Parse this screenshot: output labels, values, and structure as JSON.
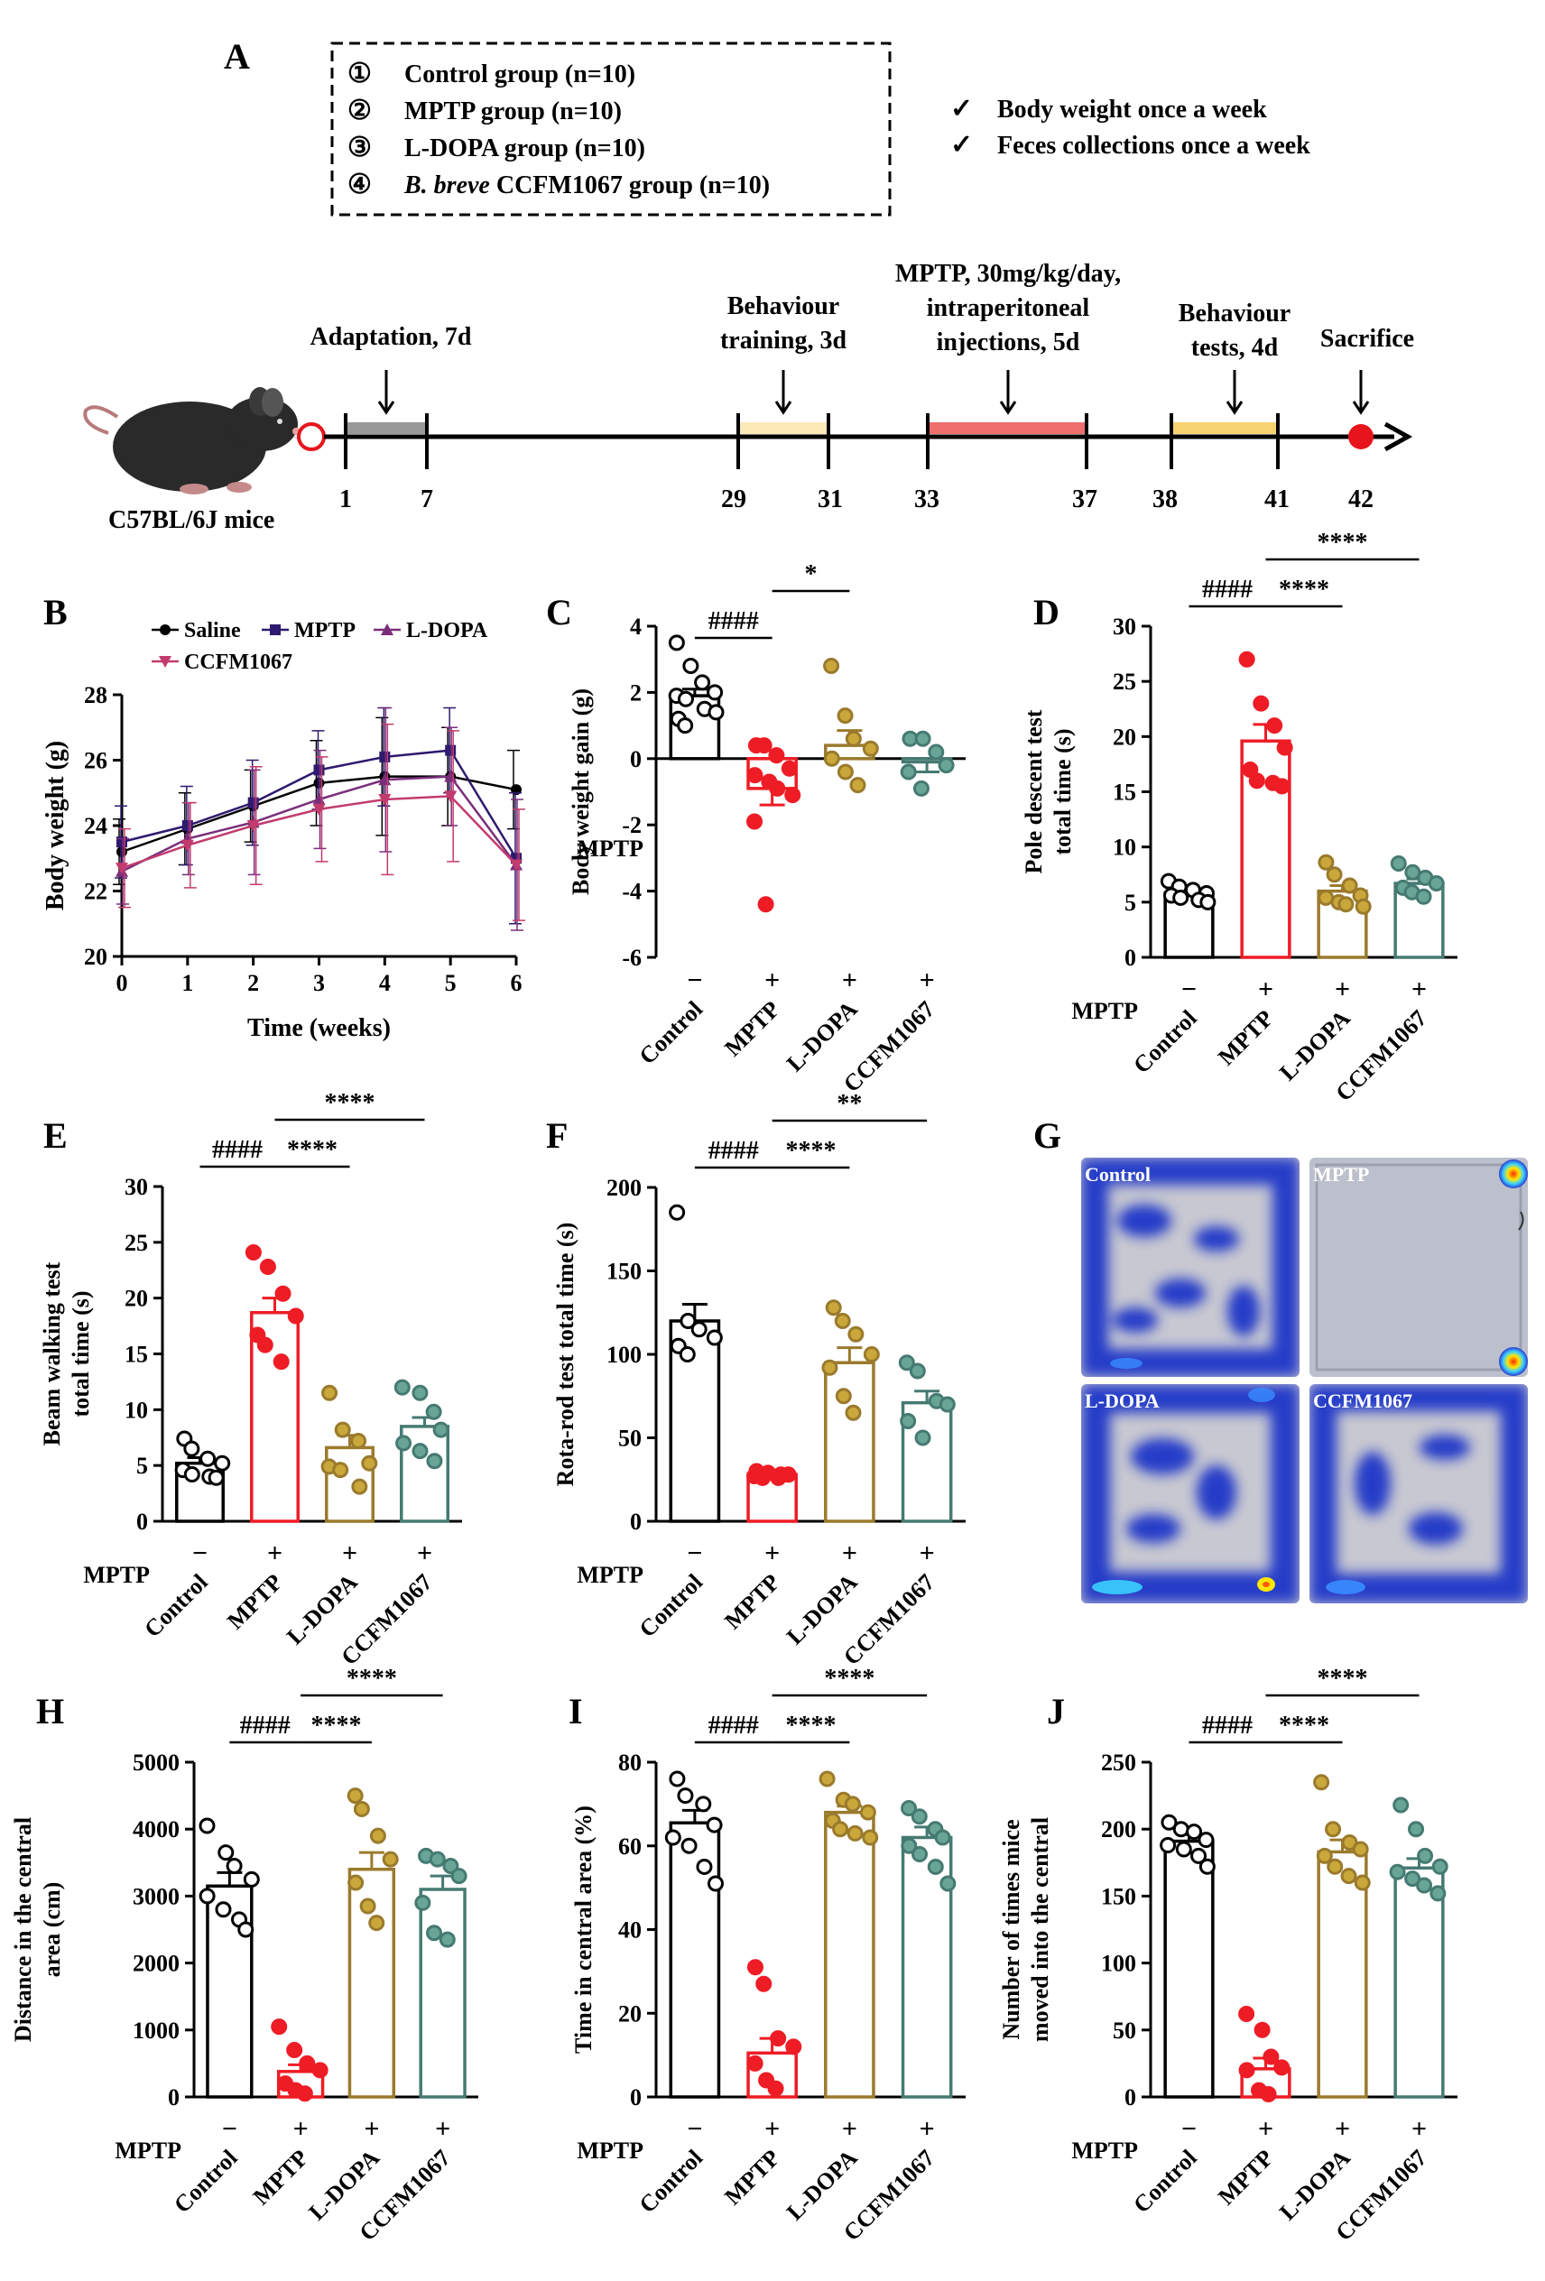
{
  "panel_labels": {
    "A": "A",
    "B": "B",
    "C": "C",
    "D": "D",
    "E": "E",
    "F": "F",
    "G": "G",
    "H": "H",
    "I": "I",
    "J": "J"
  },
  "groups_box": [
    {
      "num": "①",
      "text": "Control group (n=10)"
    },
    {
      "num": "②",
      "text": "MPTP group (n=10)"
    },
    {
      "num": "③",
      "text": "L-DOPA group (n=10)"
    },
    {
      "num": "④",
      "italic": "B. breve",
      "text": " CCFM1067 group (n=10)"
    }
  ],
  "checks": [
    "Body weight once a week",
    "Feces collections once a week"
  ],
  "check_mark": "✓",
  "timeline": {
    "mouse_label": "C57BL/6J mice",
    "phases": [
      "Adaptation, 7d",
      "Behaviour training, 3d",
      "MPTP, 30mg/kg/day, intraperitoneal injections, 5d",
      "Behaviour tests, 4d",
      "Sacrifice"
    ],
    "phase_lines": [
      [
        "Adaptation, 7d"
      ],
      [
        "Behaviour",
        "training, 3d"
      ],
      [
        "MPTP, 30mg/kg/day,",
        "intraperitoneal",
        "injections, 5d"
      ],
      [
        "Behaviour",
        "tests, 4d"
      ],
      [
        "Sacrifice"
      ]
    ],
    "days": [
      "1",
      "7",
      "29",
      "31",
      "33",
      "37",
      "38",
      "41",
      "42"
    ],
    "colors": {
      "adaptation": "#999999",
      "training": "#fbe9b7",
      "mptp": "#ef6f6f",
      "tests": "#f7d271",
      "sacrifice": "#e8141b",
      "start_circle": "#e8141b"
    }
  },
  "heatmaps": {
    "labels": [
      "Control",
      "MPTP",
      "L-DOPA",
      "CCFM1067"
    ]
  },
  "colors": {
    "Control": "#000000",
    "MPTP": "#ee1c25",
    "L-DOPA": "#9a7a2c",
    "CCFM1067": "#457a72",
    "Control_dot": "#ffffff",
    "MPTP_dot": "#ee1c25",
    "L-DOPA_dot": "#c9a73a",
    "CCFM1067_dot": "#69a596"
  },
  "chart_data": [
    {
      "panel": "B",
      "type": "line",
      "xlabel": "Time (weeks)",
      "ylabel": "Body weight (g)",
      "x": [
        0,
        1,
        2,
        3,
        4,
        5,
        6
      ],
      "xticks": [
        "0",
        "1",
        "2",
        "3",
        "4",
        "5",
        "6"
      ],
      "ylim": [
        20,
        28
      ],
      "yticks": [
        "20",
        "22",
        "24",
        "26",
        "28"
      ],
      "legend_placement": "top",
      "series": [
        {
          "name": "Saline",
          "marker": "circle",
          "color": "#000000",
          "values": [
            23.2,
            23.9,
            24.6,
            25.3,
            25.5,
            25.5,
            25.1
          ],
          "err": [
            1.0,
            1.1,
            1.1,
            1.3,
            1.8,
            1.5,
            1.2
          ]
        },
        {
          "name": "MPTP",
          "marker": "square",
          "color": "#2e1a6e",
          "values": [
            23.5,
            24.0,
            24.7,
            25.7,
            26.1,
            26.3,
            23.0
          ],
          "err": [
            1.1,
            1.2,
            1.3,
            1.2,
            1.5,
            1.3,
            2.0
          ]
        },
        {
          "name": "L-DOPA",
          "marker": "triangle-up",
          "color": "#7a2e7a",
          "values": [
            22.6,
            23.6,
            24.1,
            24.8,
            25.4,
            25.5,
            22.8
          ],
          "err": [
            1.0,
            1.1,
            1.6,
            1.5,
            2.2,
            1.5,
            2.0
          ]
        },
        {
          "name": "CCFM1067",
          "marker": "triangle-down",
          "color": "#c23b6e",
          "values": [
            22.7,
            23.4,
            24.0,
            24.5,
            24.8,
            24.9,
            22.8
          ],
          "err": [
            1.2,
            1.3,
            1.8,
            1.6,
            2.3,
            2.0,
            1.7
          ]
        }
      ]
    },
    {
      "panel": "C",
      "type": "bar",
      "ylabel": "Body weight gain (g)",
      "ylim": [
        -6,
        4
      ],
      "yticks": [
        "-6",
        "-4",
        "-2",
        "0",
        "2",
        "4"
      ],
      "categories": [
        "Control",
        "MPTP",
        "L-DOPA",
        "CCFM1067"
      ],
      "mptp_row": [
        "−",
        "+",
        "+",
        "+"
      ],
      "mptp_label": "MPTP",
      "values": [
        1.9,
        -0.9,
        0.4,
        -0.1
      ],
      "err": [
        0.2,
        0.5,
        0.45,
        0.3
      ],
      "points": [
        [
          3.5,
          2.8,
          2.3,
          2.0,
          1.9,
          1.8,
          1.5,
          1.4,
          1.2,
          1.0
        ],
        [
          0.4,
          0.4,
          0.1,
          -0.3,
          -0.5,
          -0.7,
          -0.9,
          -1.1,
          -1.9,
          -4.4
        ],
        [
          2.8,
          1.3,
          0.6,
          0.3,
          0.0,
          -0.4,
          -0.8
        ],
        [
          0.6,
          0.6,
          0.2,
          -0.2,
          -0.4,
          -0.9
        ]
      ],
      "sig": [
        {
          "from": 0,
          "to": 1,
          "label": "####",
          "level": 0
        },
        {
          "from": 1,
          "to": 2,
          "label": "*",
          "level": 1
        }
      ]
    },
    {
      "panel": "D",
      "type": "bar",
      "ylabel": "Pole descent test total time (s)",
      "ylabel_lines": [
        "Pole descent test",
        "total time (s)"
      ],
      "ylim": [
        0,
        30
      ],
      "yticks": [
        "0",
        "5",
        "10",
        "15",
        "20",
        "25",
        "30"
      ],
      "categories": [
        "Control",
        "MPTP",
        "L-DOPA",
        "CCFM1067"
      ],
      "mptp_row": [
        "−",
        "+",
        "+",
        "+"
      ],
      "mptp_label": "MPTP",
      "values": [
        5.8,
        19.6,
        6.0,
        6.7
      ],
      "err": [
        0.3,
        1.5,
        0.5,
        0.4
      ],
      "points": [
        [
          6.9,
          6.4,
          6.1,
          5.8,
          5.6,
          5.4,
          5.2,
          5.0
        ],
        [
          27.0,
          23.0,
          21.0,
          19.0,
          17.0,
          16.0,
          15.8,
          15.5
        ],
        [
          8.6,
          7.5,
          6.5,
          5.6,
          5.4,
          5.0,
          4.8,
          4.6
        ],
        [
          8.5,
          7.7,
          7.2,
          6.7,
          6.3,
          5.9,
          5.5
        ]
      ],
      "sig": [
        {
          "from": 0,
          "to": 1,
          "label": "####",
          "level": 0
        },
        {
          "from": 1,
          "to": 2,
          "label": "****",
          "level": 0
        },
        {
          "from": 1,
          "to": 3,
          "label": "****",
          "level": 1
        }
      ]
    },
    {
      "panel": "E",
      "type": "bar",
      "ylabel": "Beam walking test total time (s)",
      "ylabel_lines": [
        "Beam walking test",
        "total time (s)"
      ],
      "ylim": [
        0,
        30
      ],
      "yticks": [
        "0",
        "5",
        "10",
        "15",
        "20",
        "25",
        "30"
      ],
      "categories": [
        "Control",
        "MPTP",
        "L-DOPA",
        "CCFM1067"
      ],
      "mptp_row": [
        "−",
        "+",
        "+",
        "+"
      ],
      "mptp_label": "MPTP",
      "values": [
        5.2,
        18.7,
        6.6,
        8.5
      ],
      "err": [
        0.5,
        1.3,
        1.1,
        0.8
      ],
      "points": [
        [
          7.4,
          6.5,
          5.6,
          5.2,
          4.6,
          4.2,
          4.0,
          3.9
        ],
        [
          24.1,
          22.8,
          20.4,
          18.4,
          16.7,
          15.8,
          14.3
        ],
        [
          11.5,
          8.2,
          7.2,
          5.2,
          4.9,
          4.6,
          3.1
        ],
        [
          12.0,
          11.5,
          9.8,
          8.2,
          7.0,
          6.3,
          5.4
        ]
      ],
      "sig": [
        {
          "from": 1,
          "to": 0,
          "label": "####",
          "level": 0
        },
        {
          "from": 1,
          "to": 2,
          "label": "****",
          "level": 0
        },
        {
          "from": 1,
          "to": 3,
          "label": "****",
          "level": 1
        }
      ]
    },
    {
      "panel": "F",
      "type": "bar",
      "ylabel": "Rota-rod test total time (s)",
      "ylim": [
        0,
        200
      ],
      "yticks": [
        "0",
        "50",
        "100",
        "150",
        "200"
      ],
      "categories": [
        "Control",
        "MPTP",
        "L-DOPA",
        "CCFM1067"
      ],
      "mptp_row": [
        "−",
        "+",
        "+",
        "+"
      ],
      "mptp_label": "MPTP",
      "values": [
        120,
        28,
        95,
        71
      ],
      "err": [
        10,
        1.5,
        9,
        7
      ],
      "points": [
        [
          185,
          120,
          115,
          110,
          105,
          100
        ],
        [
          30,
          29,
          28,
          28,
          27,
          26,
          26
        ],
        [
          128,
          120,
          112,
          100,
          92,
          75,
          65
        ],
        [
          95,
          90,
          72,
          70,
          60,
          50
        ]
      ],
      "sig": [
        {
          "from": 0,
          "to": 1,
          "label": "####",
          "level": 0
        },
        {
          "from": 1,
          "to": 2,
          "label": "****",
          "level": 0
        },
        {
          "from": 1,
          "to": 3,
          "label": "**",
          "level": 1
        }
      ]
    },
    {
      "panel": "H",
      "type": "bar",
      "ylabel": "Distance in the central area (cm)",
      "ylabel_lines": [
        "Distance in the central",
        "area (cm)"
      ],
      "ylim": [
        0,
        5000
      ],
      "yticks": [
        "0",
        "1000",
        "2000",
        "3000",
        "4000",
        "5000"
      ],
      "categories": [
        "Control",
        "MPTP",
        "L-DOPA",
        "CCFM1067"
      ],
      "mptp_row": [
        "−",
        "+",
        "+",
        "+"
      ],
      "mptp_label": "MPTP",
      "values": [
        3150,
        380,
        3400,
        3100
      ],
      "err": [
        200,
        100,
        250,
        200
      ],
      "points": [
        [
          4050,
          3650,
          3450,
          3250,
          3000,
          2800,
          2650,
          2500
        ],
        [
          1050,
          700,
          500,
          400,
          200,
          100,
          50
        ],
        [
          4500,
          4300,
          3900,
          3550,
          3200,
          2850,
          2600
        ],
        [
          3600,
          3550,
          3450,
          3300,
          2900,
          2450,
          2350
        ]
      ],
      "sig": [
        {
          "from": 0,
          "to": 1,
          "label": "####",
          "level": 0
        },
        {
          "from": 1,
          "to": 2,
          "label": "****",
          "level": 0
        },
        {
          "from": 1,
          "to": 3,
          "label": "****",
          "level": 1
        }
      ]
    },
    {
      "panel": "I",
      "type": "bar",
      "ylabel": "Time in central area (%)",
      "ylim": [
        0,
        80
      ],
      "yticks": [
        "0",
        "20",
        "40",
        "60",
        "80"
      ],
      "categories": [
        "Control",
        "MPTP",
        "L-DOPA",
        "CCFM1067"
      ],
      "mptp_row": [
        "−",
        "+",
        "+",
        "+"
      ],
      "mptp_label": "MPTP",
      "values": [
        65.5,
        10.5,
        68,
        62
      ],
      "err": [
        3,
        3.5,
        1.5,
        2.5
      ],
      "points": [
        [
          76,
          72,
          70,
          65,
          62,
          60,
          55,
          51
        ],
        [
          31,
          27,
          14,
          12,
          8,
          4,
          2
        ],
        [
          76,
          71,
          70,
          68,
          66,
          64,
          63,
          62
        ],
        [
          69,
          67,
          64,
          62,
          60,
          58,
          55,
          51
        ]
      ],
      "sig": [
        {
          "from": 0,
          "to": 1,
          "label": "####",
          "level": 0
        },
        {
          "from": 1,
          "to": 2,
          "label": "****",
          "level": 0
        },
        {
          "from": 1,
          "to": 3,
          "label": "****",
          "level": 1
        }
      ]
    },
    {
      "panel": "J",
      "type": "bar",
      "ylabel": "Number of times mice moved into the central",
      "ylabel_lines": [
        "Number of times mice",
        "moved into the central"
      ],
      "ylim": [
        0,
        250
      ],
      "yticks": [
        "0",
        "50",
        "100",
        "150",
        "200",
        "250"
      ],
      "categories": [
        "Control",
        "MPTP",
        "L-DOPA",
        "CCFM1067"
      ],
      "mptp_row": [
        "−",
        "+",
        "+",
        "+"
      ],
      "mptp_label": "MPTP",
      "values": [
        191,
        21,
        183,
        171
      ],
      "err": [
        5,
        8,
        9,
        7
      ],
      "points": [
        [
          205,
          200,
          198,
          192,
          188,
          185,
          180,
          172
        ],
        [
          62,
          50,
          30,
          22,
          20,
          5,
          2
        ],
        [
          235,
          200,
          190,
          185,
          180,
          172,
          165,
          160
        ],
        [
          218,
          200,
          180,
          172,
          168,
          163,
          158,
          152
        ]
      ],
      "sig": [
        {
          "from": 0,
          "to": 1,
          "label": "####",
          "level": 0
        },
        {
          "from": 1,
          "to": 2,
          "label": "****",
          "level": 0
        },
        {
          "from": 1,
          "to": 3,
          "label": "****",
          "level": 1
        }
      ]
    }
  ]
}
